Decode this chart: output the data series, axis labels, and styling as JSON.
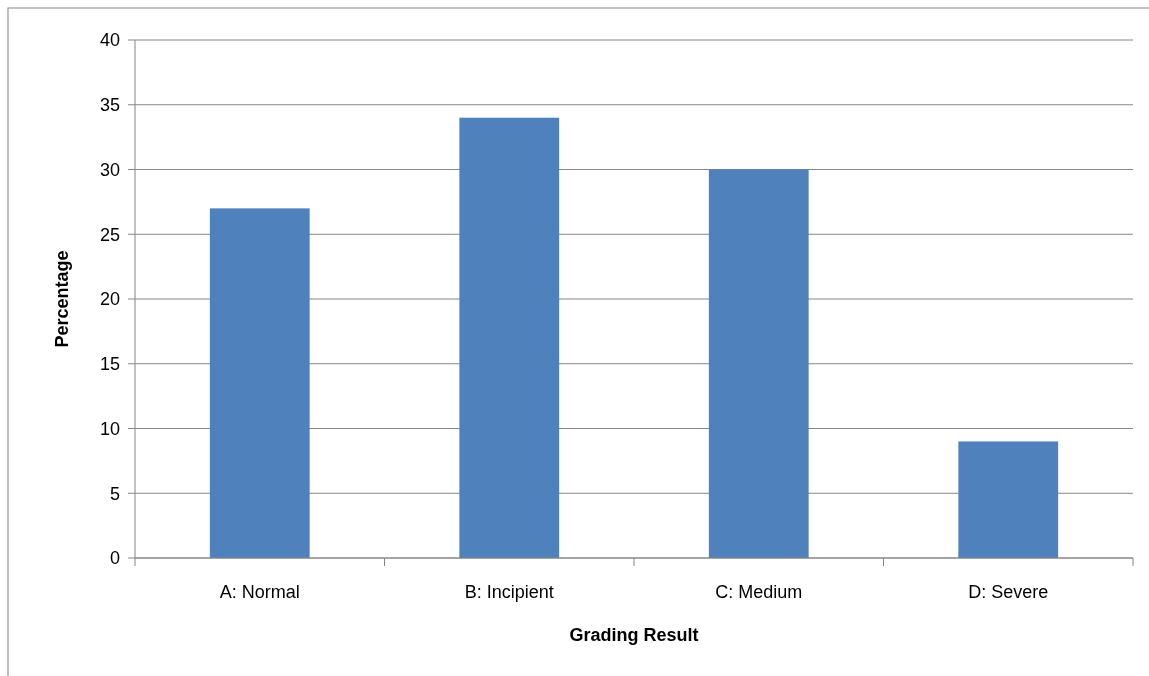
{
  "chart_data": {
    "type": "bar",
    "xlabel": "Grading Result",
    "ylabel": "Percentage",
    "categories": [
      "A: Normal",
      "B: Incipient",
      "C: Medium",
      "D: Severe"
    ],
    "values": [
      27,
      34,
      30,
      9
    ],
    "color": "#4f81bd",
    "ylim": [
      0,
      40
    ],
    "yticks": [
      0,
      5,
      10,
      15,
      20,
      25,
      30,
      35,
      40
    ],
    "grid": "y"
  }
}
